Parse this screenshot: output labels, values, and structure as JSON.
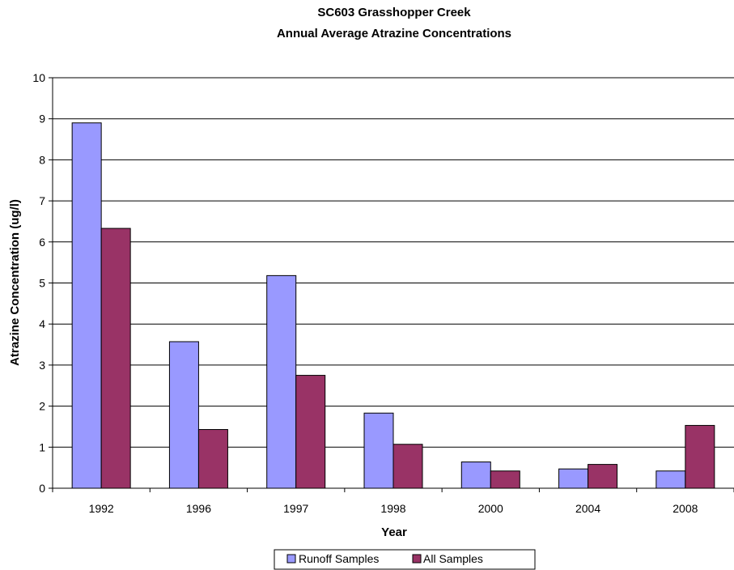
{
  "chart_data": {
    "type": "bar",
    "title": "SC603 Grasshopper Creek",
    "subtitle": "Annual Average Atrazine Concentrations",
    "xlabel": "Year",
    "ylabel": "Atrazine Concentration (ug/l)",
    "categories": [
      "1992",
      "1996",
      "1997",
      "1998",
      "2000",
      "2004",
      "2008"
    ],
    "series": [
      {
        "name": "Runoff Samples",
        "color": "#9999ff",
        "values": [
          8.9,
          3.57,
          5.18,
          1.83,
          0.64,
          0.47,
          0.42
        ]
      },
      {
        "name": "All Samples",
        "color": "#993366",
        "values": [
          6.33,
          1.43,
          2.75,
          1.07,
          0.42,
          0.58,
          1.53
        ]
      }
    ],
    "ylim": [
      0,
      10
    ],
    "yticks": [
      0,
      1,
      2,
      3,
      4,
      5,
      6,
      7,
      8,
      9,
      10
    ],
    "grid": true,
    "legend_position": "bottom"
  }
}
